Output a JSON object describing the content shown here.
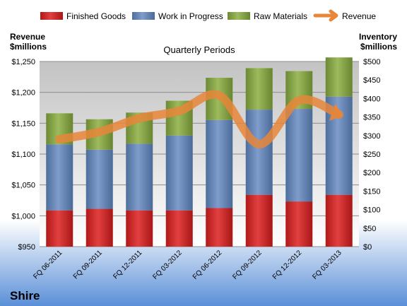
{
  "chart_data": {
    "type": "bar",
    "subtitle": "Quarterly Periods",
    "company": "Shire",
    "categories": [
      "FQ 06-2011",
      "FQ 09-2011",
      "FQ 12-2011",
      "FQ 03-2012",
      "FQ 06-2012",
      "FQ 09-2012",
      "FQ 12-2012",
      "FQ 03-2013"
    ],
    "y_left": {
      "label_line1": "Revenue",
      "label_line2": "$millions",
      "min": 950,
      "max": 1250,
      "ticks": [
        "$950",
        "$1,000",
        "$1,050",
        "$1,100",
        "$1,150",
        "$1,200",
        "$1,250"
      ]
    },
    "y_right": {
      "label_line1": "Inventory",
      "label_line2": "$millions",
      "min": 0,
      "max": 500,
      "ticks": [
        "$0",
        "$50",
        "$100",
        "$150",
        "$200",
        "$250",
        "$300",
        "$350",
        "$400",
        "$450",
        "$500"
      ]
    },
    "series": [
      {
        "name": "Finished Goods",
        "kind": "stacked-bar",
        "axis": "right",
        "color": "#d32a2a",
        "values": [
          98,
          102,
          98,
          98,
          104,
          140,
          122,
          140
        ]
      },
      {
        "name": "Work in Progress",
        "kind": "stacked-bar",
        "axis": "right",
        "color": "#6a89b8",
        "values": [
          178,
          160,
          180,
          202,
          238,
          230,
          250,
          265
        ]
      },
      {
        "name": "Raw Materials",
        "kind": "stacked-bar",
        "axis": "right",
        "color": "#8aa64a",
        "values": [
          84,
          82,
          84,
          94,
          114,
          112,
          102,
          106
        ]
      },
      {
        "name": "Revenue",
        "kind": "line",
        "axis": "left",
        "color": "#e8863a",
        "values": [
          1124,
          1136,
          1158,
          1170,
          1195,
          1116,
          1187,
          1164
        ]
      }
    ],
    "legend": {
      "position": "top"
    },
    "grid": true
  }
}
